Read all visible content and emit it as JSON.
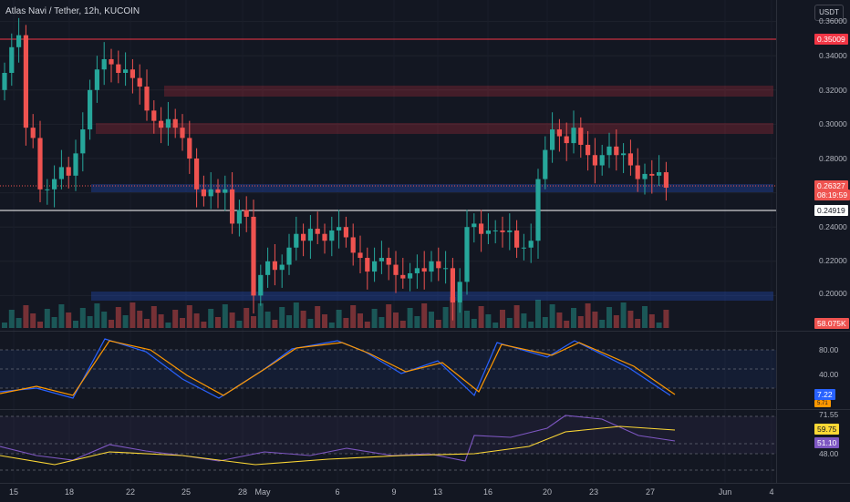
{
  "symbol": {
    "title": "Atlas Navi / Tether, 12h, KUCOIN"
  },
  "currency_button": "USDT",
  "price_axis": {
    "ticks": [
      "0.36000",
      "0.34000",
      "0.32000",
      "0.30000",
      "0.28000",
      "0.24000",
      "0.22000",
      "0.20000"
    ],
    "badges": {
      "resistance": "0.35009",
      "last_price": "0.26327",
      "countdown": "08:19:59",
      "level": "0.24919",
      "volume": "58.075K"
    }
  },
  "stoch_axis": {
    "ticks": [
      "80.00",
      "40.00"
    ],
    "badges": {
      "k": "7.22",
      "d": "5.71"
    }
  },
  "rsi_axis": {
    "ticks": [
      "71.55",
      "48.00"
    ],
    "badges": {
      "ma": "59.75",
      "rsi": "51.10"
    }
  },
  "time_axis": {
    "labels": [
      "15",
      "18",
      "22",
      "25",
      "28",
      "May",
      "6",
      "9",
      "13",
      "16",
      "20",
      "23",
      "27",
      "Jun",
      "4"
    ]
  },
  "colors": {
    "background": "#131722",
    "bullish": "#26a69a",
    "bearish": "#ef5350",
    "zone_red": "#f23645",
    "zone_blue": "#2962ff",
    "stoch_k": "#2962ff",
    "stoch_d": "#ff9800",
    "rsi_line": "#7e57c2",
    "rsi_ma": "#fdd835"
  }
}
